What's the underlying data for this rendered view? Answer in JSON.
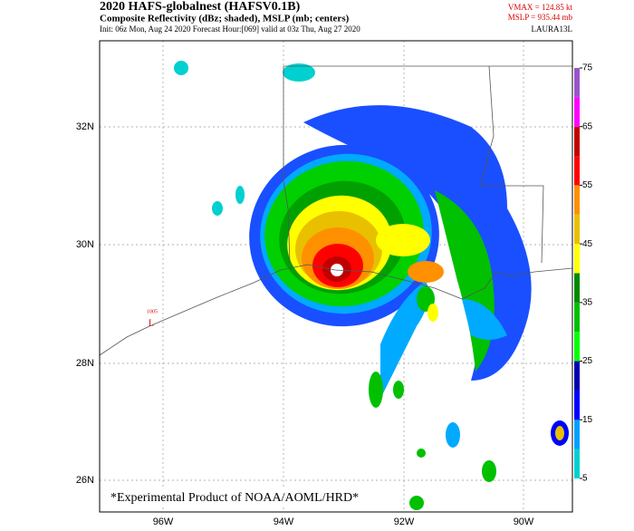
{
  "header": {
    "title": "2020 HAFS-globalnest (HAFSV0.1B)",
    "subtitle": "Composite Reflectivity (dBz; shaded), MSLP (mb; centers)",
    "info": "Init: 06z Mon, Aug 24 2020  Forecast Hour:[069]  valid at 03z Thu, Aug 27 2020",
    "vmax": "VMAX = 124.85 kt",
    "mslp": "MSLP = 935.44 mb",
    "storm": "LAURA13L"
  },
  "map": {
    "lat_labels": [
      "32N",
      "30N",
      "28N",
      "26N"
    ],
    "lon_labels": [
      "96W",
      "94W",
      "92W",
      "90W"
    ],
    "low_pressure": "1005",
    "low_symbol": "L",
    "footer": "*Experimental Product of NOAA/AOML/HRD*"
  },
  "colorbar": {
    "ticks": [
      5,
      15,
      25,
      35,
      45,
      55,
      65,
      75
    ]
  }
}
